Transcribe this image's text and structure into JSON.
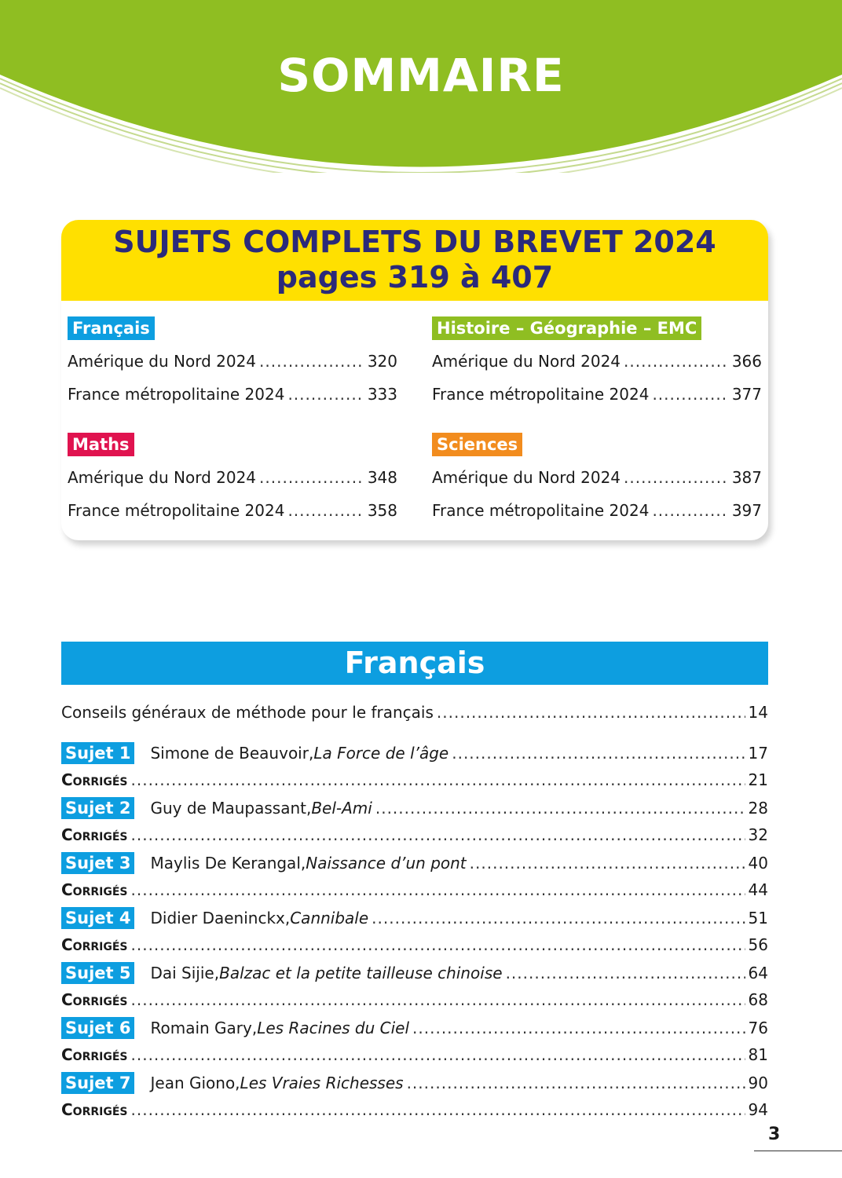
{
  "header": {
    "title": "SOMMAIRE",
    "color": "#8fbe22"
  },
  "brevet": {
    "title_line1": "SUJETS COMPLETS DU BREVET 2024",
    "title_line2": "pages 319 à 407",
    "sections": [
      {
        "label": "Français",
        "color": "#0d9ee0",
        "items": [
          {
            "text": "Amérique du Nord 2024",
            "page": "320"
          },
          {
            "text": "France métropolitaine 2024",
            "page": "333"
          }
        ]
      },
      {
        "label": "Maths",
        "color": "#e0134f",
        "items": [
          {
            "text": "Amérique du Nord 2024",
            "page": "348"
          },
          {
            "text": "France métropolitaine 2024",
            "page": "358"
          }
        ]
      },
      {
        "label": "Histoire – Géographie – EMC",
        "color": "#8fbe22",
        "items": [
          {
            "text": "Amérique du Nord 2024",
            "page": "366"
          },
          {
            "text": "France métropolitaine 2024",
            "page": "377"
          }
        ]
      },
      {
        "label": "Sciences",
        "color": "#f28c1e",
        "items": [
          {
            "text": "Amérique du Nord 2024",
            "page": "387"
          },
          {
            "text": "France métropolitaine 2024",
            "page": "397"
          }
        ]
      }
    ]
  },
  "francais": {
    "title": "Français",
    "conseils": {
      "text": "Conseils généraux de méthode pour le français",
      "page": "14"
    },
    "corriges_label": "Corrigés",
    "sujets": [
      {
        "label": "Sujet 1",
        "author": "Simone de Beauvoir, ",
        "work": "La Force de l’âge",
        "page": "17",
        "corriges_page": "21"
      },
      {
        "label": "Sujet 2",
        "author": "Guy de Maupassant, ",
        "work": "Bel-Ami",
        "page": "28",
        "corriges_page": "32"
      },
      {
        "label": "Sujet 3",
        "author": "Maylis De Kerangal, ",
        "work": "Naissance d’un pont",
        "page": "40",
        "corriges_page": "44"
      },
      {
        "label": "Sujet 4",
        "author": "Didier Daeninckx, ",
        "work": "Cannibale",
        "page": "51",
        "corriges_page": "56"
      },
      {
        "label": "Sujet 5",
        "author": "Dai Sijie, ",
        "work": "Balzac et la petite tailleuse chinoise",
        "page": "64",
        "corriges_page": "68"
      },
      {
        "label": "Sujet 6",
        "author": "Romain Gary, ",
        "work": "Les Racines du Ciel",
        "page": "76",
        "corriges_page": "81"
      },
      {
        "label": "Sujet 7",
        "author": "Jean Giono, ",
        "work": "Les Vraies Richesses",
        "page": "90",
        "corriges_page": "94"
      }
    ]
  },
  "page_number": "3"
}
